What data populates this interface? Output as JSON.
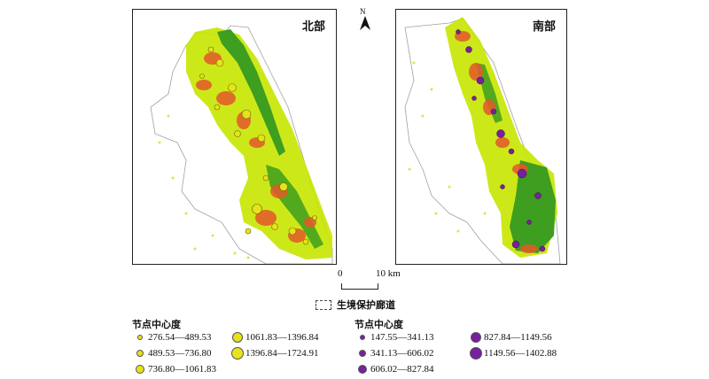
{
  "panels": {
    "north_label": "北部",
    "south_label": "南部"
  },
  "north_arrow": {
    "letter": "N"
  },
  "scale_bar": {
    "left_label": "0",
    "right_label": "10 km"
  },
  "corridor_legend": {
    "label": "生境保护廊道"
  },
  "legend_north": {
    "title": "节点中心度",
    "color": "#e6e21b",
    "items": [
      {
        "range": "276.54—489.53"
      },
      {
        "range": "489.53—736.80"
      },
      {
        "range": "736.80—1061.83"
      },
      {
        "range": "1061.83—1396.84"
      },
      {
        "range": "1396.84—1724.91"
      }
    ]
  },
  "legend_south": {
    "title": "节点中心度",
    "color": "#7a1fa0",
    "items": [
      {
        "range": "147.55—341.13"
      },
      {
        "range": "341.13—606.02"
      },
      {
        "range": "606.02—827.84"
      },
      {
        "range": "827.84—1149.56"
      },
      {
        "range": "1149.56—1402.88"
      }
    ]
  },
  "map_colors": {
    "habitat_light": "#c8e600",
    "habitat_dark": "#3d9e1f",
    "hotspot": "#e4582a",
    "boundary": "#9a9a9a"
  }
}
